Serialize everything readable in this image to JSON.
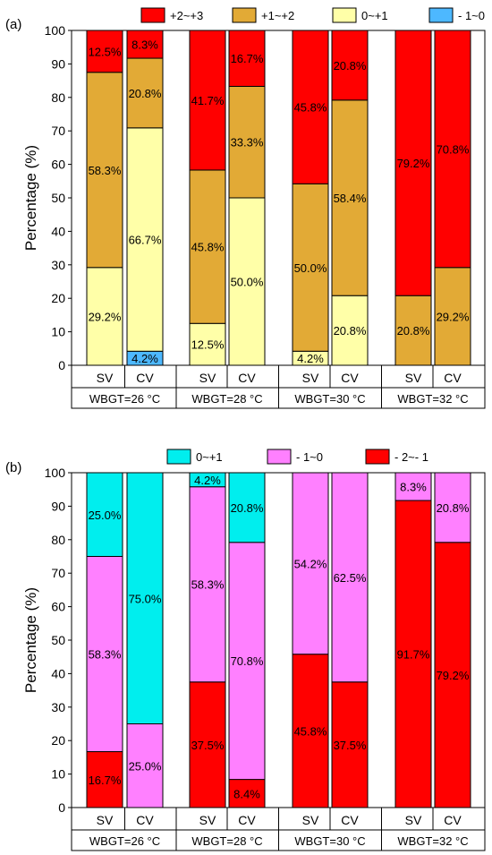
{
  "chart_data": [
    {
      "panel_label": "(a)",
      "type": "bar",
      "stacked": true,
      "ylabel": "Percentage (%)",
      "ylim": [
        0,
        100
      ],
      "yticks": [
        0,
        10,
        20,
        30,
        40,
        50,
        60,
        70,
        80,
        90,
        100
      ],
      "categories": [
        "SV",
        "CV",
        "SV",
        "CV",
        "SV",
        "CV",
        "SV",
        "CV"
      ],
      "groups": [
        "WBGT=26 °C",
        "WBGT=28 °C",
        "WBGT=30 °C",
        "WBGT=32 °C"
      ],
      "legend_placement": "top",
      "series": [
        {
          "name": "- 1~0",
          "color": "#4db8ff",
          "values": [
            0,
            4.2,
            0,
            0,
            0,
            0,
            0,
            0
          ],
          "labels": [
            "",
            "4.2%",
            "",
            "",
            "",
            "",
            "",
            ""
          ]
        },
        {
          "name": "0~+1",
          "color": "#ffffa8",
          "values": [
            29.2,
            66.7,
            12.5,
            50.0,
            4.2,
            20.8,
            0,
            0
          ],
          "labels": [
            "29.2%",
            "66.7%",
            "12.5%",
            "50.0%",
            "4.2%",
            "20.8%",
            "",
            ""
          ]
        },
        {
          "name": "+1~+2",
          "color": "#e2aa36",
          "values": [
            58.3,
            20.8,
            45.8,
            33.3,
            50.0,
            58.4,
            20.8,
            29.2
          ],
          "labels": [
            "58.3%",
            "20.8%",
            "45.8%",
            "33.3%",
            "50.0%",
            "58.4%",
            "20.8%",
            "29.2%"
          ]
        },
        {
          "name": "+2~+3",
          "color": "#ff0000",
          "values": [
            12.5,
            8.3,
            41.7,
            16.7,
            45.8,
            20.8,
            79.2,
            70.8
          ],
          "labels": [
            "12.5%",
            "8.3%",
            "41.7%",
            "16.7%",
            "45.8%",
            "20.8%",
            "79.2%",
            "70.8%"
          ]
        }
      ],
      "legend_order": [
        "+2~+3",
        "+1~+2",
        "0~+1",
        "- 1~0"
      ]
    },
    {
      "panel_label": "(b)",
      "type": "bar",
      "stacked": true,
      "ylabel": "Percentage (%)",
      "ylim": [
        0,
        100
      ],
      "yticks": [
        0,
        10,
        20,
        30,
        40,
        50,
        60,
        70,
        80,
        90,
        100
      ],
      "categories": [
        "SV",
        "CV",
        "SV",
        "CV",
        "SV",
        "CV",
        "SV",
        "CV"
      ],
      "groups": [
        "WBGT=26 °C",
        "WBGT=28 °C",
        "WBGT=30 °C",
        "WBGT=32 °C"
      ],
      "legend_placement": "top",
      "series": [
        {
          "name": "- 2~- 1",
          "color": "#ff0000",
          "values": [
            16.7,
            0,
            37.5,
            8.4,
            45.8,
            37.5,
            91.7,
            79.2
          ],
          "labels": [
            "16.7%",
            "",
            "37.5%",
            "8.4%",
            "45.8%",
            "37.5%",
            "91.7%",
            "79.2%"
          ]
        },
        {
          "name": "- 1~0",
          "color": "#ff80ff",
          "values": [
            58.3,
            25.0,
            58.3,
            70.8,
            54.2,
            62.5,
            8.3,
            20.8
          ],
          "labels": [
            "58.3%",
            "25.0%",
            "58.3%",
            "70.8%",
            "54.2%",
            "62.5%",
            "8.3%",
            "20.8%"
          ]
        },
        {
          "name": "0~+1",
          "color": "#00eeee",
          "values": [
            25.0,
            75.0,
            4.2,
            20.8,
            0,
            0,
            0,
            0
          ],
          "labels": [
            "25.0%",
            "75.0%",
            "4.2%",
            "20.8%",
            "",
            "",
            "",
            ""
          ]
        }
      ],
      "legend_order": [
        "0~+1",
        "- 1~0",
        "- 2~- 1"
      ]
    }
  ]
}
